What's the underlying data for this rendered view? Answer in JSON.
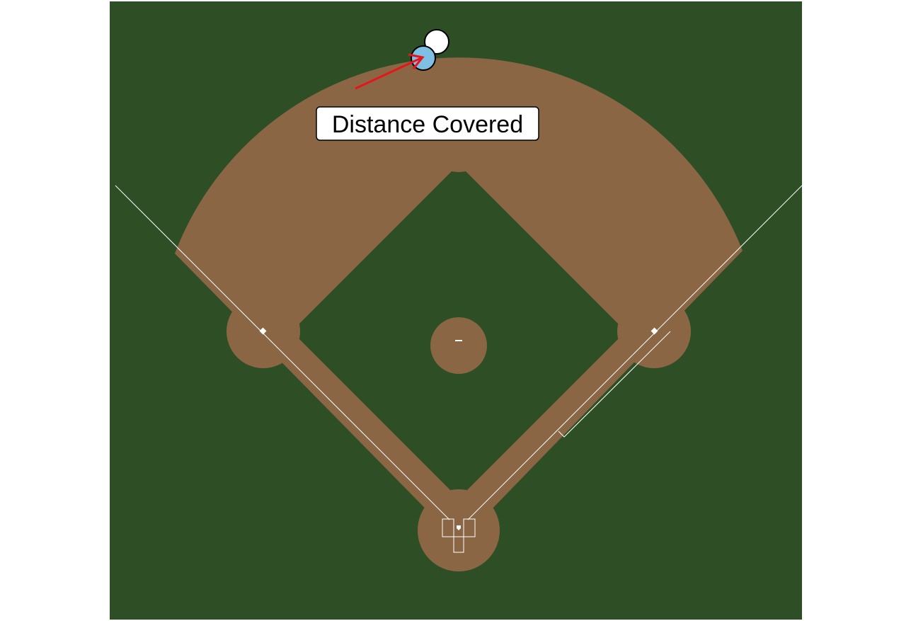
{
  "annotation": {
    "label": "Distance Covered"
  },
  "colors": {
    "grass": "#2e4f26",
    "dirt": "#8a6644",
    "chalk": "#ffffff",
    "arrow": "#e8141c",
    "fielder_start": "#ffffff",
    "fielder_end": "#7ec0e4",
    "outline": "#000000"
  }
}
